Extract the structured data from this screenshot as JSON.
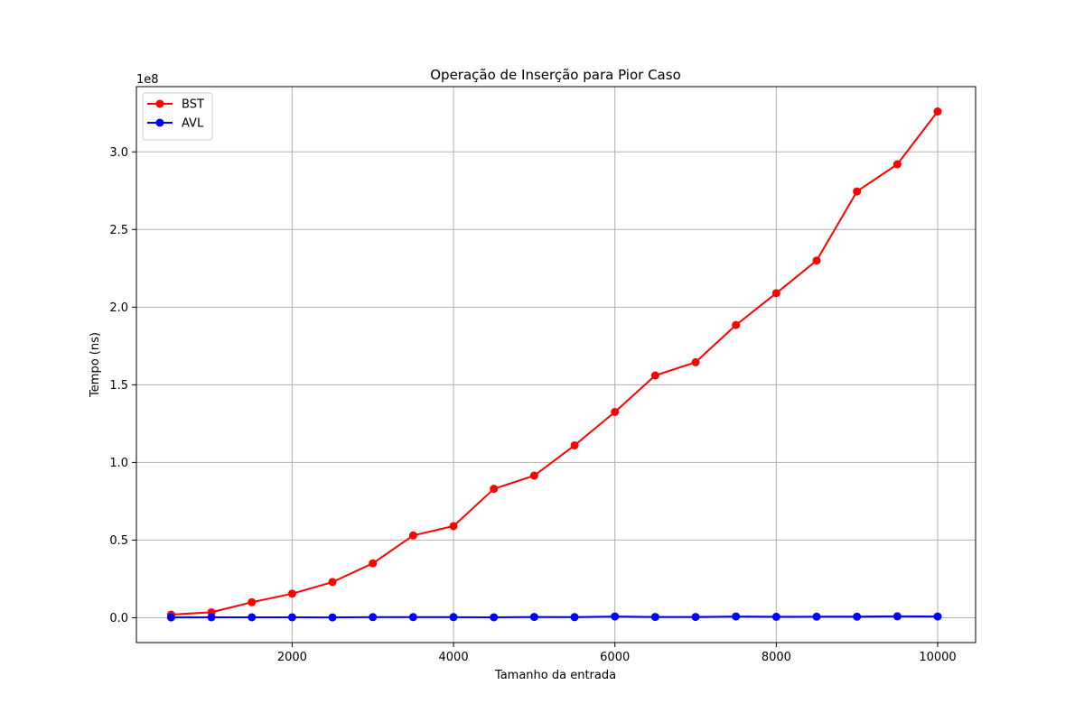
{
  "chart_data": {
    "type": "line",
    "title": "Operação de Inserção para Pior Caso",
    "xlabel": "Tamanho da entrada",
    "ylabel": "Tempo (ns)",
    "y_offset_label": "1e8",
    "xlim": [
      70,
      10470
    ],
    "ylim": [
      -0.16,
      3.42
    ],
    "x_ticks": [
      2000,
      4000,
      6000,
      8000,
      10000
    ],
    "x_tick_labels": [
      "2000",
      "4000",
      "6000",
      "8000",
      "10000"
    ],
    "y_ticks": [
      0.0,
      0.5,
      1.0,
      1.5,
      2.0,
      2.5,
      3.0
    ],
    "y_tick_labels": [
      "0.0",
      "0.5",
      "1.0",
      "1.5",
      "2.0",
      "2.5",
      "3.0"
    ],
    "grid": true,
    "legend_position": "top-left",
    "x": [
      500,
      1000,
      1500,
      2000,
      2500,
      3000,
      3500,
      4000,
      4500,
      5000,
      5500,
      6000,
      6500,
      7000,
      7500,
      8000,
      8500,
      9000,
      9500,
      10000
    ],
    "series": [
      {
        "name": "BST",
        "color": "#ff0000",
        "marker": "circle",
        "values": [
          0.02,
          0.035,
          0.1,
          0.155,
          0.23,
          0.35,
          0.53,
          0.59,
          0.83,
          0.915,
          1.11,
          1.325,
          1.56,
          1.645,
          1.885,
          2.09,
          2.3,
          2.745,
          2.92,
          3.26
        ]
      },
      {
        "name": "AVL",
        "color": "#0000ff",
        "marker": "circle",
        "values": [
          0.002,
          0.003,
          0.003,
          0.003,
          0.002,
          0.004,
          0.004,
          0.004,
          0.003,
          0.005,
          0.004,
          0.008,
          0.005,
          0.005,
          0.008,
          0.006,
          0.007,
          0.007,
          0.009,
          0.008
        ]
      }
    ]
  }
}
